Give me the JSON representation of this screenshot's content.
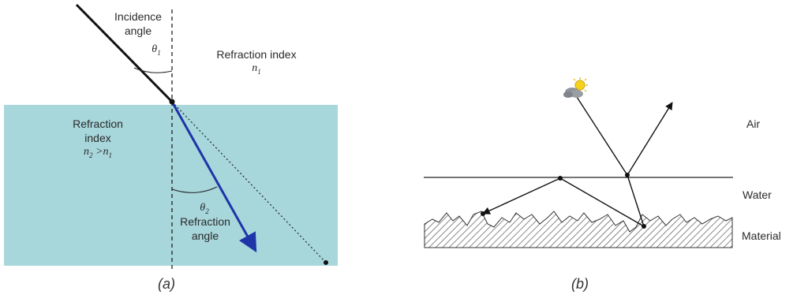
{
  "panel_a": {
    "caption": "(a)",
    "incidence_label_line1": "Incidence",
    "incidence_label_line2": "angle",
    "theta1": "θ",
    "theta1_sub": "1",
    "upper_label_line1": "Refraction index",
    "upper_label_line2": "n",
    "upper_label_sub": "1",
    "lower_label_line1": "Refraction",
    "lower_label_line2": "index",
    "lower_label_n2": "n",
    "lower_label_n2_sub": "2",
    "lower_label_gt": " >",
    "lower_label_n1": "n",
    "lower_label_n1_sub": "1",
    "theta2": "θ",
    "theta2_sub": "2",
    "refraction_angle_line1": "Refraction",
    "refraction_angle_line2": "angle",
    "colors": {
      "medium": "#a7d6db",
      "refracted_ray": "#1f34a8",
      "incident_ray": "#111111"
    }
  },
  "panel_b": {
    "caption": "(b)",
    "air_label": "Air",
    "water_label": "Water",
    "material_label": "Material",
    "source_icon": "sun-cloud-icon"
  }
}
